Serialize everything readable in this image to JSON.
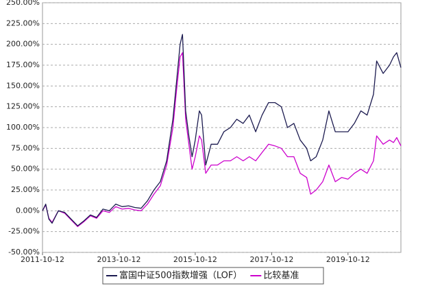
{
  "chart_data": {
    "type": "line",
    "x": [
      "2011-10-12",
      "2011-11-12",
      "2011-12-12",
      "2012-01-12",
      "2012-03-12",
      "2012-05-12",
      "2012-07-12",
      "2012-09-12",
      "2012-11-12",
      "2013-01-12",
      "2013-03-12",
      "2013-05-12",
      "2013-07-12",
      "2013-09-12",
      "2013-11-12",
      "2014-01-12",
      "2014-03-12",
      "2014-05-12",
      "2014-07-12",
      "2014-09-12",
      "2014-11-12",
      "2015-01-12",
      "2015-03-12",
      "2015-04-12",
      "2015-05-20",
      "2015-06-12",
      "2015-07-12",
      "2015-08-12",
      "2015-09-12",
      "2015-10-12",
      "2015-11-20",
      "2015-12-12",
      "2016-01-20",
      "2016-03-12",
      "2016-05-12",
      "2016-07-12",
      "2016-09-12",
      "2016-11-12",
      "2017-01-12",
      "2017-03-12",
      "2017-05-12",
      "2017-07-12",
      "2017-09-12",
      "2017-11-12",
      "2018-01-12",
      "2018-03-12",
      "2018-05-12",
      "2018-07-12",
      "2018-09-12",
      "2018-10-20",
      "2018-12-12",
      "2019-02-12",
      "2019-04-12",
      "2019-06-12",
      "2019-08-12",
      "2019-10-12",
      "2019-12-12",
      "2020-02-12",
      "2020-04-12",
      "2020-06-12",
      "2020-07-12",
      "2020-09-12",
      "2020-11-12",
      "2020-12-20",
      "2021-01-20",
      "2021-03-01"
    ],
    "series": [
      {
        "name": "富国中证500指数增强（LOF）",
        "color": "#1b1a4f",
        "values": [
          0,
          8,
          -10,
          -15,
          0,
          -2,
          -10,
          -18,
          -12,
          -5,
          -8,
          2,
          0,
          8,
          5,
          6,
          4,
          3,
          12,
          25,
          35,
          60,
          110,
          150,
          200,
          212,
          120,
          90,
          65,
          85,
          120,
          115,
          55,
          80,
          80,
          95,
          100,
          110,
          105,
          115,
          95,
          115,
          130,
          130,
          125,
          100,
          105,
          85,
          75,
          60,
          65,
          85,
          120,
          95,
          95,
          95,
          105,
          120,
          115,
          140,
          180,
          165,
          175,
          185,
          190,
          172
        ]
      },
      {
        "name": "比较基准",
        "color": "#cc00cc",
        "values": [
          0,
          7,
          -9,
          -14,
          0,
          -3,
          -11,
          -19,
          -13,
          -6,
          -9,
          0,
          -2,
          5,
          2,
          3,
          1,
          0,
          8,
          20,
          30,
          55,
          100,
          140,
          185,
          190,
          110,
          80,
          50,
          65,
          90,
          85,
          45,
          55,
          55,
          60,
          60,
          65,
          60,
          65,
          60,
          70,
          80,
          78,
          75,
          65,
          65,
          45,
          40,
          20,
          25,
          35,
          55,
          35,
          40,
          38,
          45,
          50,
          45,
          60,
          90,
          80,
          85,
          82,
          88,
          78
        ]
      }
    ],
    "xlim": [
      "2011-10-12",
      "2021-03-01"
    ],
    "xticks": [
      "2011-10-12",
      "2013-10-12",
      "2015-10-12",
      "2017-10-12",
      "2019-10-12"
    ],
    "ylim": [
      -50,
      250
    ],
    "yticks": [
      {
        "value": -50,
        "label": "-50.00%"
      },
      {
        "value": -25,
        "label": "-25.00%"
      },
      {
        "value": 0,
        "label": "0.00%"
      },
      {
        "value": 25,
        "label": "25.00%"
      },
      {
        "value": 50,
        "label": "50.00%"
      },
      {
        "value": 75,
        "label": "75.00%"
      },
      {
        "value": 100,
        "label": "100.00%"
      },
      {
        "value": 125,
        "label": "125.00%"
      },
      {
        "value": 150,
        "label": "150.00%"
      },
      {
        "value": 175,
        "label": "175.00%"
      },
      {
        "value": 200,
        "label": "200.00%"
      },
      {
        "value": 225,
        "label": "225.00%"
      },
      {
        "value": 250,
        "label": "250.00%"
      }
    ],
    "grid": true
  }
}
